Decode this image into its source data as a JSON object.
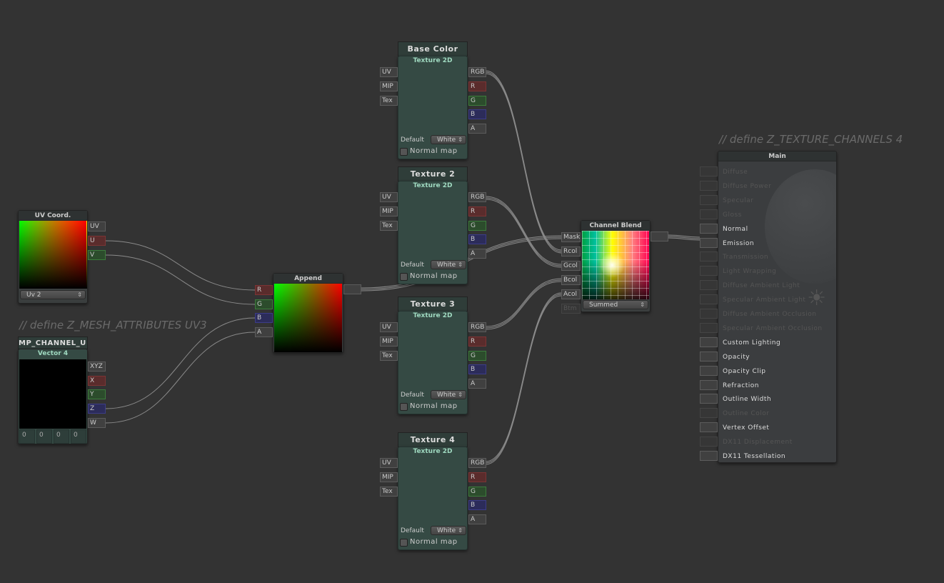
{
  "comments": {
    "mesh": "// define Z_MESH_ATTRIBUTES UV3",
    "channels": "// define Z_TEXTURE_CHANNELS 4"
  },
  "uv_node": {
    "title": "UV Coord.",
    "outputs": [
      "UV",
      "U",
      "V"
    ],
    "dropdown": "Uv 2"
  },
  "vector_node": {
    "title_bar": "MP_CHANNEL_U",
    "title": "Vector 4",
    "outputs": [
      "XYZ",
      "X",
      "Y",
      "Z",
      "W"
    ],
    "values": [
      "0",
      "0",
      "0",
      "0"
    ]
  },
  "append_node": {
    "title": "Append",
    "inputs": [
      "R",
      "G",
      "B",
      "A"
    ]
  },
  "textures": [
    {
      "title": "Base Color",
      "subtitle": "Texture 2D",
      "inputs": [
        "UV",
        "MIP",
        "Tex"
      ],
      "outputs": [
        "RGB",
        "R",
        "G",
        "B",
        "A"
      ],
      "default_label": "Default",
      "default_value": "White",
      "normal_map": "Normal map"
    },
    {
      "title": "Texture 2",
      "subtitle": "Texture 2D",
      "inputs": [
        "UV",
        "MIP",
        "Tex"
      ],
      "outputs": [
        "RGB",
        "R",
        "G",
        "B",
        "A"
      ],
      "default_label": "Default",
      "default_value": "White",
      "normal_map": "Normal map"
    },
    {
      "title": "Texture 3",
      "subtitle": "Texture 2D",
      "inputs": [
        "UV",
        "MIP",
        "Tex"
      ],
      "outputs": [
        "RGB",
        "R",
        "G",
        "B",
        "A"
      ],
      "default_label": "Default",
      "default_value": "White",
      "normal_map": "Normal map"
    },
    {
      "title": "Texture 4",
      "subtitle": "Texture 2D",
      "inputs": [
        "UV",
        "MIP",
        "Tex"
      ],
      "outputs": [
        "RGB",
        "R",
        "G",
        "B",
        "A"
      ],
      "default_label": "Default",
      "default_value": "White",
      "normal_map": "Normal map"
    }
  ],
  "blend_node": {
    "title": "Channel Blend",
    "inputs": [
      "Mask",
      "Rcol",
      "Gcol",
      "Bcol",
      "Acol",
      "Btm"
    ],
    "dropdown": "Summed"
  },
  "main_node": {
    "title": "Main",
    "rows": [
      {
        "label": "Diffuse",
        "enabled": false
      },
      {
        "label": "Diffuse Power",
        "enabled": false
      },
      {
        "label": "Specular",
        "enabled": false
      },
      {
        "label": "Gloss",
        "enabled": false
      },
      {
        "label": "Normal",
        "enabled": true
      },
      {
        "label": "Emission",
        "enabled": true
      },
      {
        "label": "Transmission",
        "enabled": false
      },
      {
        "label": "Light Wrapping",
        "enabled": false
      },
      {
        "label": "Diffuse Ambient Light",
        "enabled": false
      },
      {
        "label": "Specular Ambient Light",
        "enabled": false
      },
      {
        "label": "Diffuse Ambient Occlusion",
        "enabled": false
      },
      {
        "label": "Specular Ambient Occlusion",
        "enabled": false
      },
      {
        "label": "Custom Lighting",
        "enabled": true
      },
      {
        "label": "Opacity",
        "enabled": true
      },
      {
        "label": "Opacity Clip",
        "enabled": true
      },
      {
        "label": "Refraction",
        "enabled": true
      },
      {
        "label": "Outline Width",
        "enabled": true
      },
      {
        "label": "Outline Color",
        "enabled": false
      },
      {
        "label": "Vertex Offset",
        "enabled": true
      },
      {
        "label": "DX11 Displacement",
        "enabled": false
      },
      {
        "label": "DX11 Tessellation",
        "enabled": true
      }
    ]
  }
}
